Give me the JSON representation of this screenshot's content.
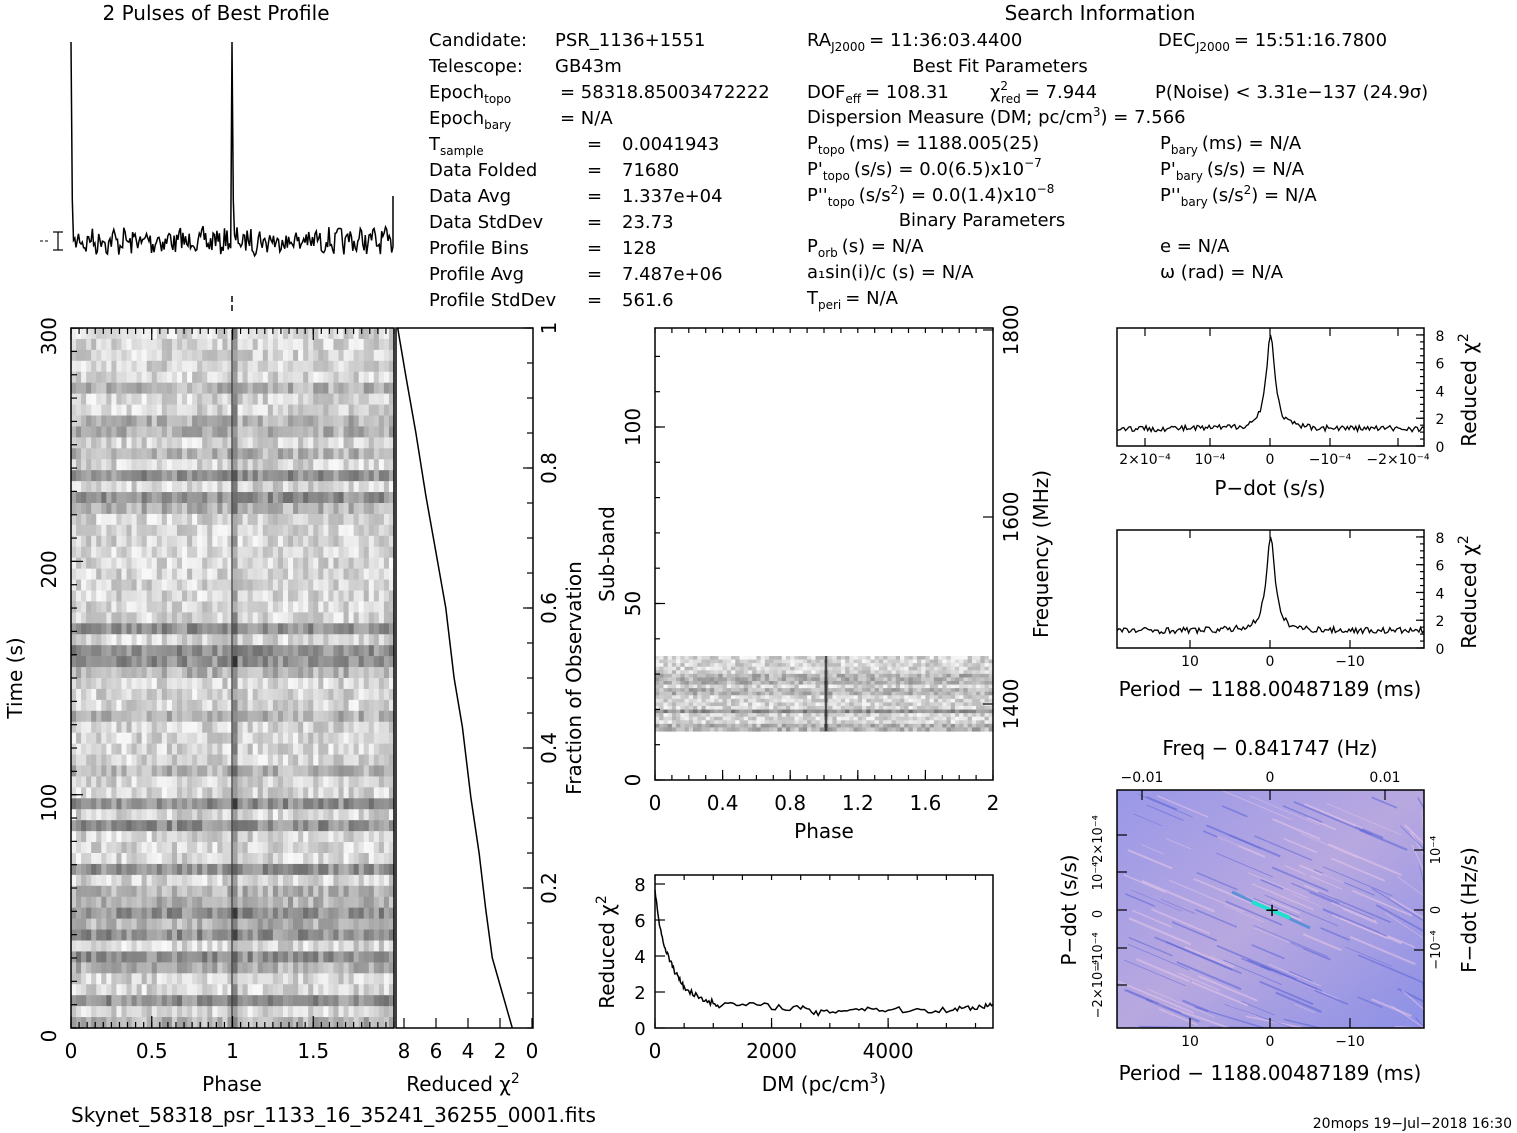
{
  "header": {
    "profile_title": "2 Pulses of Best Profile",
    "search_title": "Search Information",
    "best_fit_title": "Best Fit Parameters",
    "binary_title": "Binary Parameters"
  },
  "info_left": [
    {
      "label": "Candidate:",
      "value": "PSR_1136+1551"
    },
    {
      "label": "Telescope:",
      "value": "GB43m"
    },
    {
      "label": "Epoch_topo",
      "value": "= 58318.85003472222"
    },
    {
      "label": "Epoch_bary",
      "value": "= N/A"
    },
    {
      "label": "T_sample",
      "value": "0.0041943"
    },
    {
      "label": "Data Folded",
      "value": "71680"
    },
    {
      "label": "Data Avg",
      "value": "1.337e+04"
    },
    {
      "label": "Data StdDev",
      "value": "23.73"
    },
    {
      "label": "Profile Bins",
      "value": "128"
    },
    {
      "label": "Profile Avg",
      "value": "7.487e+06"
    },
    {
      "label": "Profile StdDev",
      "value": "561.6"
    }
  ],
  "search_info": {
    "ra": "= 11:36:03.4400",
    "dec": "= 15:51:16.7800",
    "dof": "= 108.31",
    "chi2": "= 7.944",
    "pnoise": "P(Noise) < 3.31e−137   (24.9σ)",
    "dm": "= 7.566",
    "ptopo": "(ms) =  1188.005(25)",
    "pdot_topo": "(s/s) = 0.0(6.5)x10",
    "pdot_topo_exp": "−7",
    "pddot_topo": "(s/s",
    "pddot_topo_tail": ") = 0.0(1.4)x10",
    "pddot_topo_exp": "−8",
    "pbary": "(ms) = N/A",
    "pdot_bary": "(s/s) = N/A",
    "pddot_bary_tail": ") = N/A",
    "porb": "(s) = N/A",
    "a1sini": "a₁sin(i)/c (s) = N/A",
    "tperi": "= N/A",
    "ecc": "e = N/A",
    "omega": "ω (rad) = N/A"
  },
  "footer": {
    "filename": "Skynet_58318_psr_1133_16_35241_36255_0001.fits",
    "stamp": "20mops  19−Jul−2018 16:30"
  },
  "chart_data": [
    {
      "type": "line",
      "title": "2 Pulses of Best Profile",
      "xlabel": "",
      "ylabel": "",
      "x_range": [
        0,
        2
      ],
      "peaks_at_phase": [
        0.0,
        1.0
      ],
      "note_values": "two identical pulses: sharp spike at phase ~0.0 and ~1.0 above noisy baseline"
    },
    {
      "type": "heatmap",
      "title": "",
      "xlabel": "Phase",
      "ylabel": "Time (s)",
      "xticks": [
        "0",
        "0.5",
        "1",
        "1.5"
      ],
      "yticks": [
        "0",
        "100",
        "200",
        "300"
      ],
      "xlim": [
        0,
        2
      ],
      "ylim": [
        0,
        300
      ],
      "pulse_line_phase": 1.0
    },
    {
      "type": "line",
      "xlabel": "Reduced χ²",
      "ylabel": "Fraction of Observation",
      "xticks": [
        "8",
        "6",
        "4",
        "2",
        "0"
      ],
      "yticks": [
        "0.2",
        "0.4",
        "0.6",
        "0.8",
        "1"
      ],
      "x": [
        1.0,
        1.6,
        2.2,
        2.6,
        3.0,
        3.5,
        4.0,
        4.5,
        5.0,
        5.6,
        6.2,
        6.8,
        7.4,
        7.9
      ],
      "y": [
        0.0,
        0.05,
        0.1,
        0.17,
        0.25,
        0.33,
        0.43,
        0.5,
        0.6,
        0.68,
        0.76,
        0.85,
        0.93,
        1.0
      ],
      "xlim": [
        8,
        0
      ],
      "ylim": [
        0,
        1
      ]
    },
    {
      "type": "heatmap",
      "xlabel": "Phase",
      "ylabel": "Sub-band",
      "y2label": "Frequency (MHz)",
      "xticks": [
        "0",
        "0.4",
        "0.8",
        "1.2",
        "1.6",
        "2"
      ],
      "yticks": [
        "0",
        "50",
        "100"
      ],
      "y2ticks": [
        "1400",
        "1600",
        "1800"
      ],
      "xlim": [
        0,
        2
      ],
      "ylim": [
        0,
        128
      ],
      "data_band": [
        14,
        35
      ],
      "pulse_line_phase": 1.0
    },
    {
      "type": "line",
      "xlabel": "DM (pc/cm³)",
      "ylabel": "Reduced χ²",
      "xticks": [
        "0",
        "2000",
        "4000"
      ],
      "yticks": [
        "0",
        "2",
        "4",
        "6",
        "8"
      ],
      "x": [
        0,
        100,
        200,
        300,
        400,
        500,
        700,
        900,
        1100,
        1500,
        2000,
        2500,
        2800,
        3200,
        3600,
        4000,
        4500,
        5000,
        5300,
        5600,
        5800
      ],
      "y": [
        7.6,
        5.3,
        4.2,
        3.4,
        2.8,
        2.3,
        1.8,
        1.5,
        1.3,
        1.3,
        1.2,
        1.1,
        0.8,
        1.0,
        1.1,
        1.0,
        1.0,
        1.0,
        1.1,
        1.2,
        1.3
      ],
      "xlim": [
        0,
        5800
      ],
      "ylim": [
        0,
        8.5
      ]
    },
    {
      "type": "line",
      "xlabel": "P−dot (s/s)",
      "ylabel": "Reduced χ²",
      "xticks": [
        "2×10⁻⁴",
        "10⁻⁴",
        "0",
        "−10⁻⁴",
        "−2×10⁻⁴"
      ],
      "yticks": [
        "0",
        "2",
        "4",
        "6",
        "8"
      ],
      "x": [
        0.00025,
        0.00015,
        5e-05,
        1e-05,
        3e-06,
        0,
        -3e-06,
        -1e-05,
        -5e-05,
        -0.00015,
        -0.00025
      ],
      "y": [
        1.2,
        1.3,
        1.4,
        1.7,
        4.5,
        8.0,
        4.5,
        1.7,
        1.3,
        1.2,
        1.2
      ],
      "xlim": [
        0.00026,
        -0.00026
      ],
      "ylim": [
        0,
        8.5
      ]
    },
    {
      "type": "line",
      "xlabel": "Period − 1188.00487189 (ms)",
      "ylabel": "Reduced χ²",
      "xticks": [
        "10",
        "0",
        "−10"
      ],
      "yticks": [
        "0",
        "2",
        "4",
        "6",
        "8"
      ],
      "x": [
        20,
        15,
        10,
        5,
        2,
        1,
        0.3,
        0,
        -0.3,
        -1,
        -2,
        -5,
        -10,
        -15,
        -20
      ],
      "y": [
        1.2,
        1.2,
        1.3,
        1.4,
        1.8,
        2.8,
        6.0,
        8.0,
        6.0,
        2.8,
        1.8,
        1.3,
        1.2,
        1.2,
        1.2
      ],
      "xlim": [
        20,
        -20
      ],
      "ylim": [
        0,
        8.5
      ]
    },
    {
      "type": "heatmap",
      "title": "Freq − 0.841747 (Hz)",
      "xlabel": "Period − 1188.00487189 (ms)",
      "ylabel": "P−dot (s/s)",
      "y2label": "F−dot (Hz/s)",
      "xticks": [
        "10",
        "0",
        "−10"
      ],
      "x2ticks": [
        "−0.01",
        "0",
        "0.01"
      ],
      "yticks": [
        "2×10⁻⁴",
        "10⁻⁴",
        "0",
        "−10⁻⁴",
        "−2×10⁻⁴"
      ],
      "y2ticks": [
        "−10⁻⁴",
        "0",
        "10⁻⁴"
      ],
      "peak": {
        "x": 0,
        "y": 0
      }
    }
  ]
}
